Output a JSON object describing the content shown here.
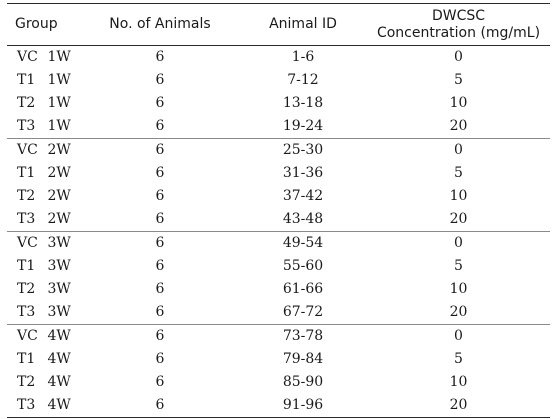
{
  "table": {
    "headers": {
      "group": "Group",
      "animals": "No. of Animals",
      "animal_id": "Animal ID",
      "concentration_line1": "DWCSC",
      "concentration_line2": "Concentration (mg/mL)"
    },
    "rows": [
      {
        "code": "VC",
        "week": "1W",
        "animals": "6",
        "animal_id": "1-6",
        "concentration": "0"
      },
      {
        "code": "T1",
        "week": "1W",
        "animals": "6",
        "animal_id": "7-12",
        "concentration": "5"
      },
      {
        "code": "T2",
        "week": "1W",
        "animals": "6",
        "animal_id": "13-18",
        "concentration": "10"
      },
      {
        "code": "T3",
        "week": "1W",
        "animals": "6",
        "animal_id": "19-24",
        "concentration": "20"
      },
      {
        "code": "VC",
        "week": "2W",
        "animals": "6",
        "animal_id": "25-30",
        "concentration": "0"
      },
      {
        "code": "T1",
        "week": "2W",
        "animals": "6",
        "animal_id": "31-36",
        "concentration": "5"
      },
      {
        "code": "T2",
        "week": "2W",
        "animals": "6",
        "animal_id": "37-42",
        "concentration": "10"
      },
      {
        "code": "T3",
        "week": "2W",
        "animals": "6",
        "animal_id": "43-48",
        "concentration": "20"
      },
      {
        "code": "VC",
        "week": "3W",
        "animals": "6",
        "animal_id": "49-54",
        "concentration": "0"
      },
      {
        "code": "T1",
        "week": "3W",
        "animals": "6",
        "animal_id": "55-60",
        "concentration": "5"
      },
      {
        "code": "T2",
        "week": "3W",
        "animals": "6",
        "animal_id": "61-66",
        "concentration": "10"
      },
      {
        "code": "T3",
        "week": "3W",
        "animals": "6",
        "animal_id": "67-72",
        "concentration": "20"
      },
      {
        "code": "VC",
        "week": "4W",
        "animals": "6",
        "animal_id": "73-78",
        "concentration": "0"
      },
      {
        "code": "T1",
        "week": "4W",
        "animals": "6",
        "animal_id": "79-84",
        "concentration": "5"
      },
      {
        "code": "T2",
        "week": "4W",
        "animals": "6",
        "animal_id": "85-90",
        "concentration": "10"
      },
      {
        "code": "T3",
        "week": "4W",
        "animals": "6",
        "animal_id": "91-96",
        "concentration": "20"
      }
    ]
  }
}
